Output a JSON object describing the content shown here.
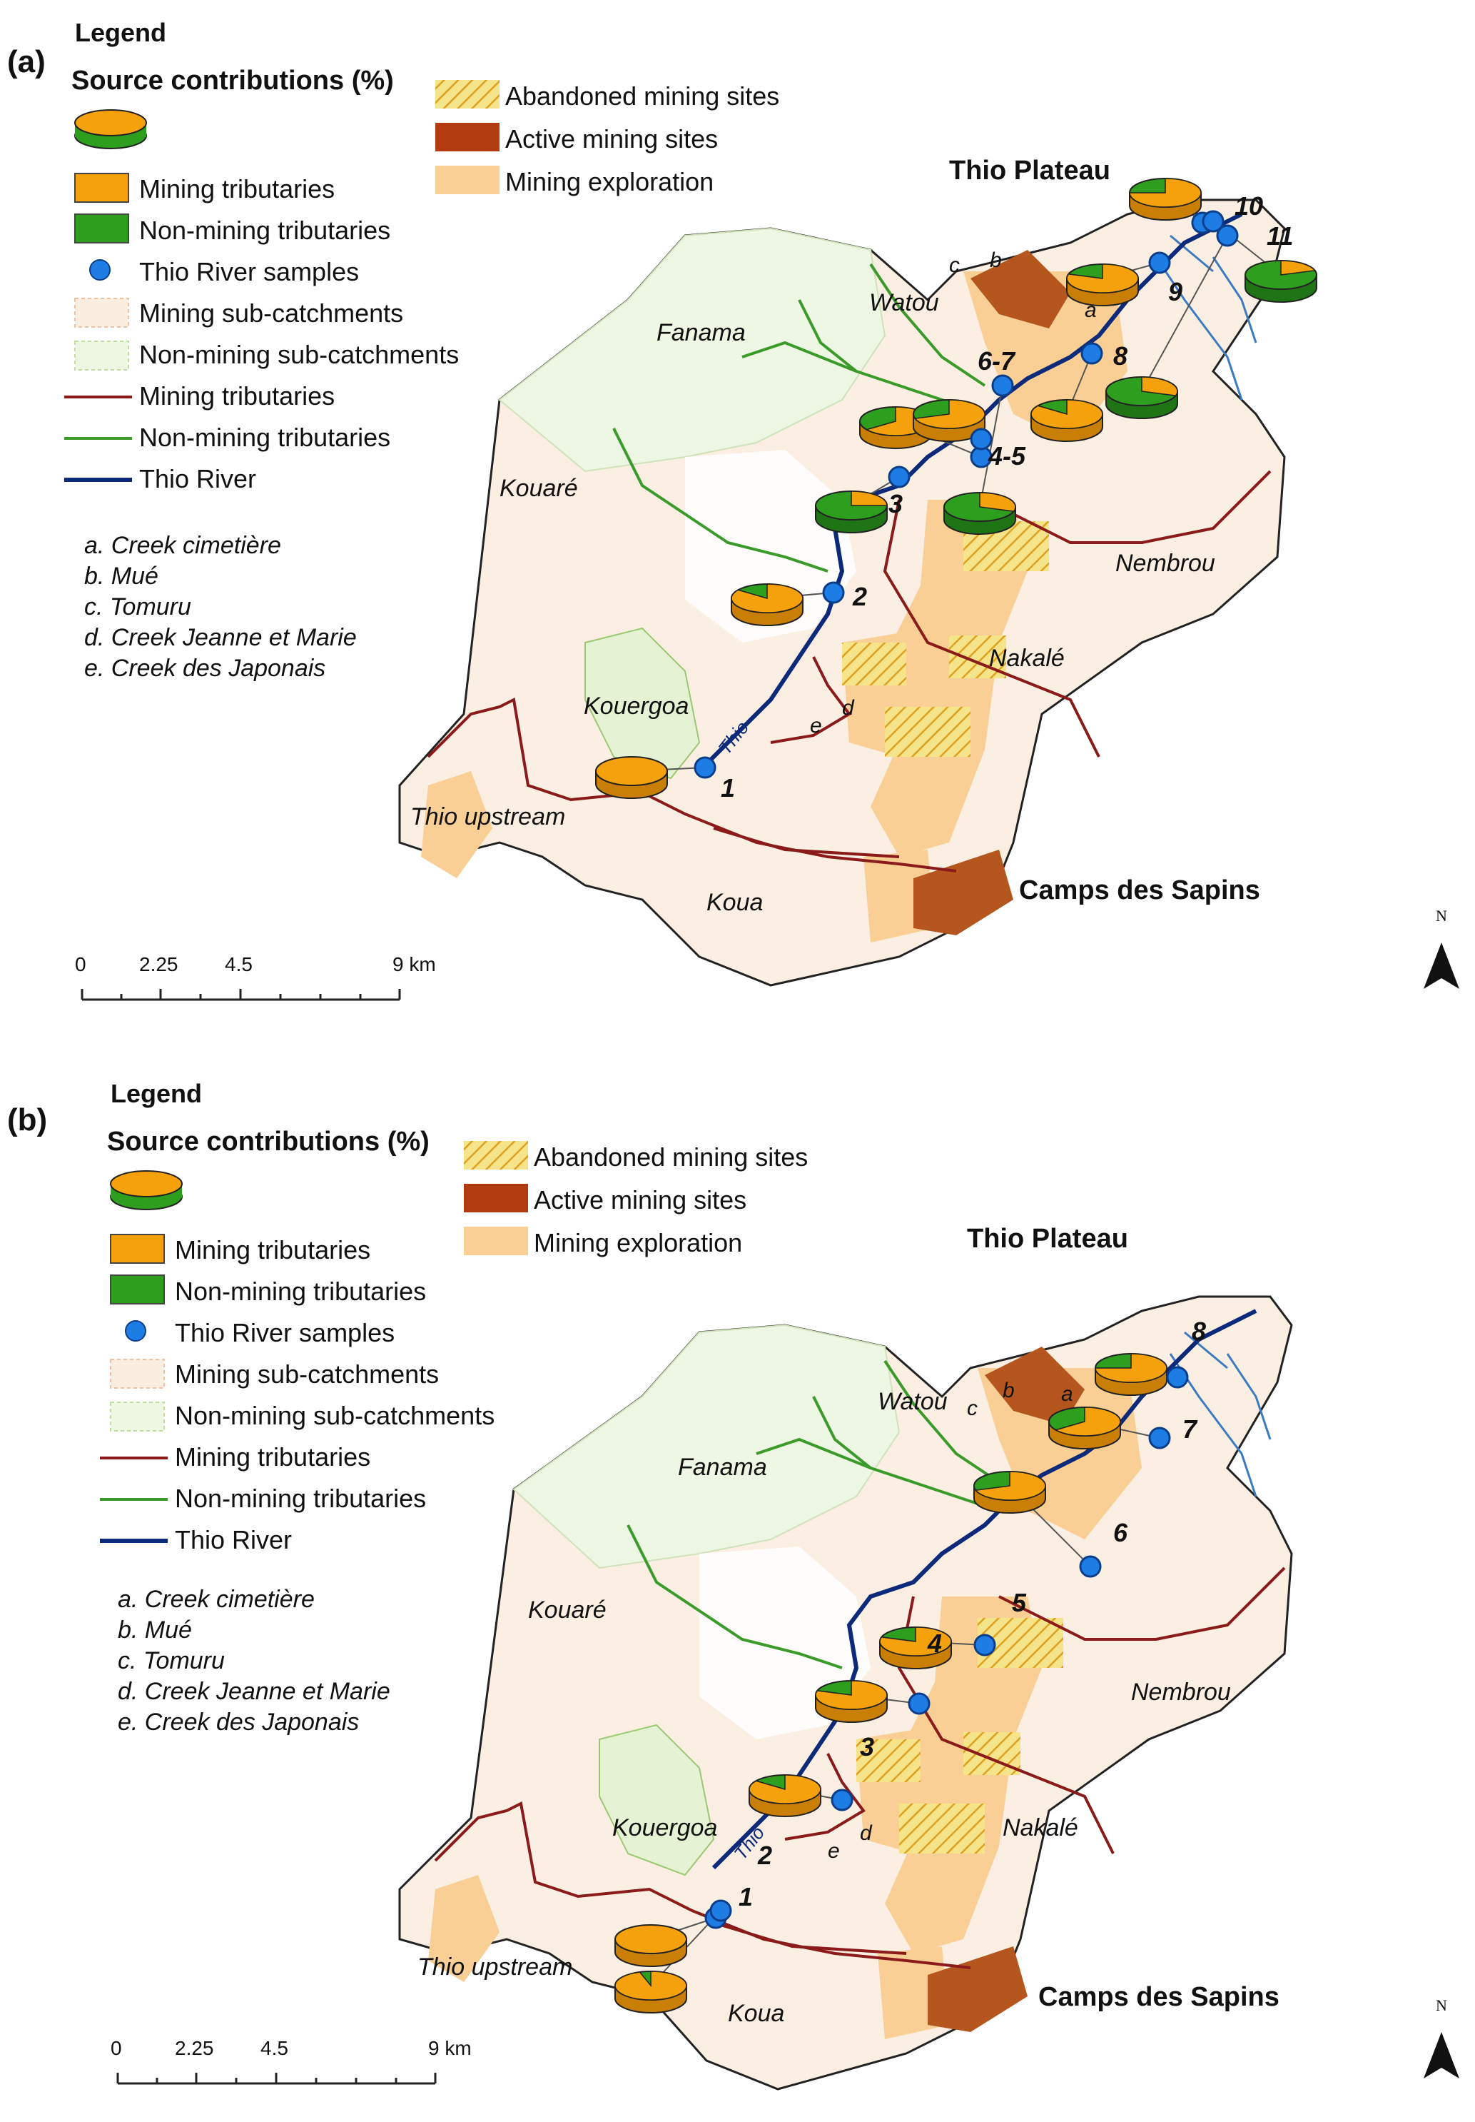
{
  "colors": {
    "mining": "#f5a10b",
    "non_mining": "#2e9e1f",
    "river_sample": "#1e7de4",
    "thio_river": "#0d2a7a",
    "mining_tributary": "#8b1a1a",
    "non_mining_tributary": "#3a9a2a",
    "active_mining": "#b23c10",
    "exploration": "#f9cf95",
    "abandoned_hatch": "#e8d23a",
    "mining_subcatchment": "#faeee0",
    "non_mining_subcatchment": "#eef7e2"
  },
  "panels": [
    {
      "label": "(a)",
      "legend": {
        "title": "Legend",
        "subtitle": "Source contributions (%)",
        "items": [
          "Mining tributaries",
          "Non-mining tributaries",
          "Thio River samples",
          "Mining sub-catchments",
          "Non-mining sub-catchments",
          "Mining tributaries",
          "Non-mining tributaries",
          "Thio River"
        ],
        "sites": [
          "Abandoned mining sites",
          "Active mining sites",
          "Mining exploration"
        ],
        "notes": [
          "a. Creek cimetière",
          "b. Mué",
          "c. Tomuru",
          "d. Creek Jeanne et Marie",
          "e. Creek des Japonais"
        ]
      },
      "places": [
        "Thio Plateau",
        "Watou",
        "Fanama",
        "Kouaré",
        "Nembrou",
        "Nakalé",
        "Kouergoa",
        "Thio upstream",
        "Koua",
        "Camps des Sapins",
        "Thio"
      ],
      "letters": [
        "a",
        "b",
        "c",
        "d",
        "e"
      ],
      "samples": [
        "1",
        "2",
        "3",
        "4-5",
        "6-7",
        "8",
        "9",
        "10",
        "11"
      ],
      "mining_share": [
        1.0,
        0.85,
        0.25,
        0.65,
        0.7,
        0.3,
        0.85,
        0.8,
        0.75,
        0.2,
        0.3
      ],
      "scale": {
        "ticks": [
          "0",
          "2.25",
          "4.5",
          "9 km"
        ]
      },
      "north": "N"
    },
    {
      "label": "(b)",
      "legend": {
        "title": "Legend",
        "subtitle": "Source contributions (%)",
        "items": [
          "Mining tributaries",
          "Non-mining tributaries",
          "Thio River samples",
          "Mining sub-catchments",
          "Non-mining sub-catchments",
          "Mining tributaries",
          "Non-mining tributaries",
          "Thio River"
        ],
        "sites": [
          "Abandoned mining sites",
          "Active mining sites",
          "Mining exploration"
        ],
        "notes": [
          "a. Creek cimetière",
          "b. Mué",
          "c. Tomuru",
          "d. Creek Jeanne et Marie",
          "e. Creek des Japonais"
        ]
      },
      "places": [
        "Thio Plateau",
        "Watou",
        "Fanama",
        "Kouaré",
        "Nembrou",
        "Nakalé",
        "Kouergoa",
        "Thio upstream",
        "Koua",
        "Camps des Sapins",
        "Thio"
      ],
      "letters": [
        "a",
        "b",
        "c",
        "d",
        "e"
      ],
      "samples": [
        "1",
        "2",
        "3",
        "4",
        "5",
        "6",
        "7",
        "8"
      ],
      "mining_share": [
        1.0,
        0.95,
        0.85,
        0.8,
        0.8,
        0.7,
        0.65,
        0.75
      ],
      "scale": {
        "ticks": [
          "0",
          "2.25",
          "4.5",
          "9 km"
        ]
      },
      "north": "N"
    }
  ]
}
